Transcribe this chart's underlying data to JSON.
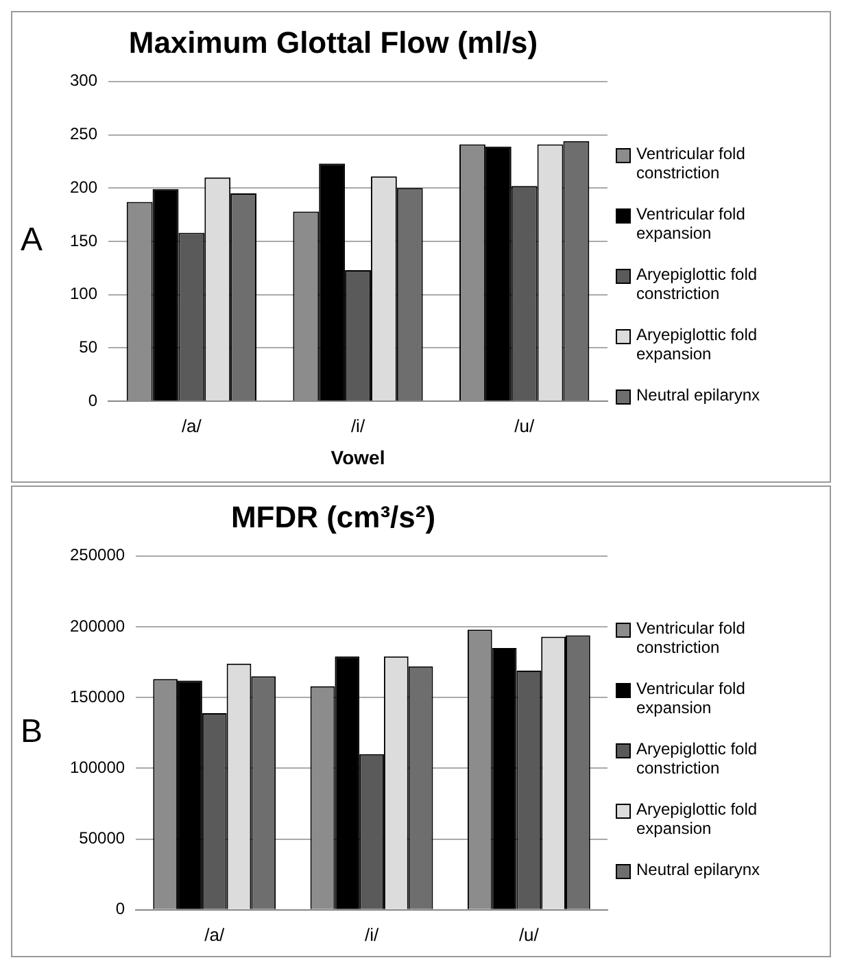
{
  "chart_data": [
    {
      "type": "bar",
      "title": "Maximum Glottal Flow (ml/s)",
      "xlabel": "Vowel",
      "annotations": [
        "A"
      ],
      "categories": [
        "/a/",
        "/i/",
        "/u/"
      ],
      "series": [
        {
          "name": "Ventricular fold constriction",
          "color": "#8c8c8c",
          "values": [
            187,
            178,
            241
          ]
        },
        {
          "name": "Ventricular fold expansion",
          "color": "#000000",
          "values": [
            199,
            223,
            239
          ]
        },
        {
          "name": "Aryepiglottic fold constriction",
          "color": "#5a5a5a",
          "values": [
            158,
            123,
            202
          ]
        },
        {
          "name": "Aryepiglottic fold expansion",
          "color": "#dcdcdc",
          "values": [
            210,
            211,
            241
          ]
        },
        {
          "name": "Neutral epilarynx",
          "color": "#6e6e6e",
          "values": [
            195,
            200,
            244
          ]
        }
      ],
      "ylim": [
        0,
        300
      ],
      "yticks": [
        0,
        50,
        100,
        150,
        200,
        250,
        300
      ],
      "grid": "y",
      "legend": "right"
    },
    {
      "type": "bar",
      "title": "MFDR (cm³/s²)",
      "annotations": [
        "B"
      ],
      "categories": [
        "/a/",
        "/i/",
        "/u/"
      ],
      "series": [
        {
          "name": "Ventricular fold constriction",
          "color": "#8c8c8c",
          "values": [
            163000,
            158000,
            198000
          ]
        },
        {
          "name": "Ventricular fold expansion",
          "color": "#000000",
          "values": [
            162000,
            179000,
            185000
          ]
        },
        {
          "name": "Aryepiglottic fold constriction",
          "color": "#5a5a5a",
          "values": [
            139000,
            110000,
            169000
          ]
        },
        {
          "name": "Aryepiglottic fold expansion",
          "color": "#dcdcdc",
          "values": [
            174000,
            179000,
            193000
          ]
        },
        {
          "name": "Neutral epilarynx",
          "color": "#6e6e6e",
          "values": [
            165000,
            172000,
            194000
          ]
        }
      ],
      "ylim": [
        0,
        250000
      ],
      "yticks": [
        0,
        50000,
        100000,
        150000,
        200000,
        250000
      ],
      "grid": "y",
      "legend": "right"
    }
  ]
}
